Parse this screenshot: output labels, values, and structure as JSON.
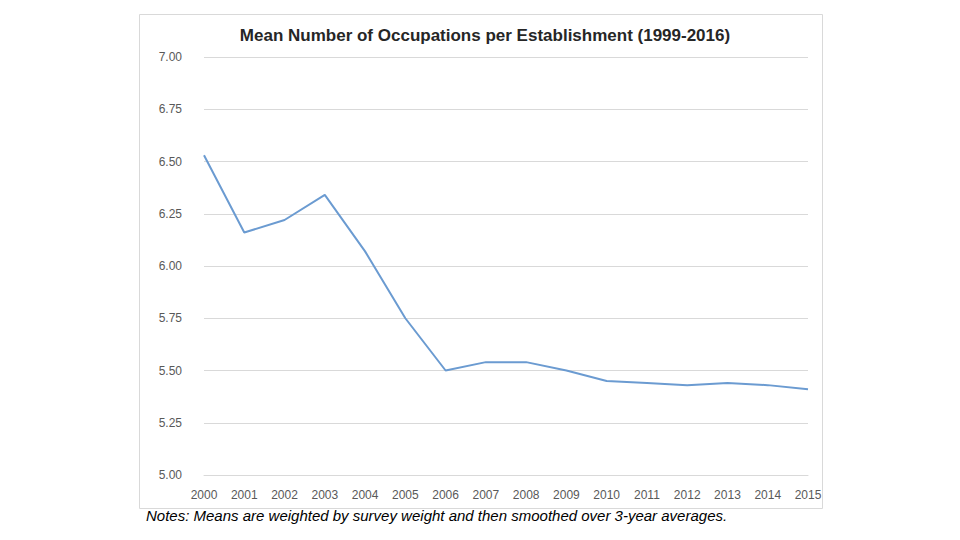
{
  "chart_data": {
    "type": "line",
    "title": "Mean Number of Occupations per Establishment (1999-2016)",
    "note": "Notes: Means are weighted by survey weight and then smoothed over 3-year averages.",
    "categories": [
      "2000",
      "2001",
      "2002",
      "2003",
      "2004",
      "2005",
      "2006",
      "2007",
      "2008",
      "2009",
      "2010",
      "2011",
      "2012",
      "2013",
      "2014",
      "2015"
    ],
    "values": [
      6.53,
      6.16,
      6.22,
      6.34,
      6.07,
      5.75,
      5.5,
      5.54,
      5.54,
      5.5,
      5.45,
      5.44,
      5.43,
      5.44,
      5.43,
      5.41
    ],
    "color": "#6b9bd1",
    "ylim": [
      5,
      7
    ],
    "yticks": [
      {
        "value": 5,
        "label": "5.00"
      },
      {
        "value": 5.25,
        "label": "5.25"
      },
      {
        "value": 5.5,
        "label": "5.50"
      },
      {
        "value": 5.75,
        "label": "5.75"
      },
      {
        "value": 6,
        "label": "6.00"
      },
      {
        "value": 6.25,
        "label": "6.25"
      },
      {
        "value": 6.5,
        "label": "6.50"
      },
      {
        "value": 6.75,
        "label": "6.75"
      },
      {
        "value": 7,
        "label": "7.00"
      }
    ],
    "grid": true
  }
}
